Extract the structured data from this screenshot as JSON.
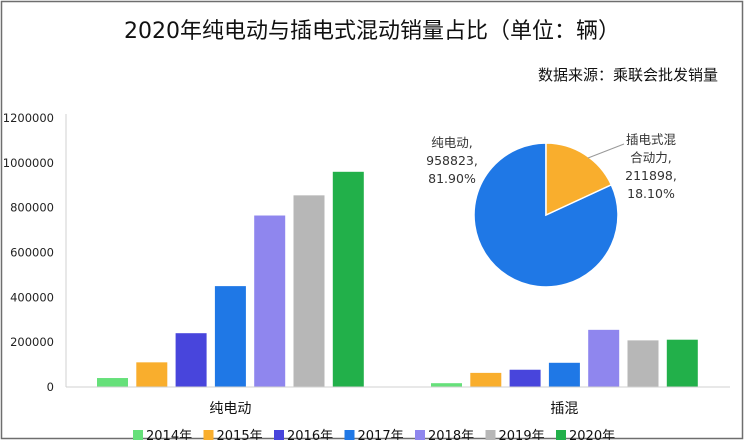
{
  "chart_data": [
    {
      "type": "bar",
      "title": "2020年纯电动与插电式混动销量占比（单位：辆）",
      "subtitle": "数据来源：乘联会批发销量",
      "categories": [
        "纯电动",
        "插混"
      ],
      "ylim": [
        0,
        1200000
      ],
      "yticks": [
        0,
        200000,
        400000,
        600000,
        800000,
        1000000,
        1200000
      ],
      "grid": false,
      "legend_position": "bottom",
      "series": [
        {
          "name": "2014年",
          "color": "#66e07a",
          "values": [
            40000,
            17000
          ]
        },
        {
          "name": "2015年",
          "color": "#f9ae2d",
          "values": [
            110000,
            63000
          ]
        },
        {
          "name": "2016年",
          "color": "#4845dc",
          "values": [
            240000,
            77000
          ]
        },
        {
          "name": "2017年",
          "color": "#1f78e6",
          "values": [
            450000,
            108000
          ]
        },
        {
          "name": "2018年",
          "color": "#8f86ee",
          "values": [
            765000,
            255000
          ]
        },
        {
          "name": "2019年",
          "color": "#b7b7b7",
          "values": [
            855000,
            208000
          ]
        },
        {
          "name": "2020年",
          "color": "#22b04a",
          "values": [
            960000,
            211000
          ]
        }
      ]
    },
    {
      "type": "pie",
      "slices": [
        {
          "label_lines": [
            "纯电动,",
            "958823,",
            "81.90%"
          ],
          "value": 958823,
          "percent": 81.9,
          "color": "#1f78e6"
        },
        {
          "label_lines": [
            "插电式混",
            "合动力,",
            "211898,",
            "18.10%"
          ],
          "value": 211898,
          "percent": 18.1,
          "color": "#f9ae2d"
        }
      ]
    }
  ]
}
